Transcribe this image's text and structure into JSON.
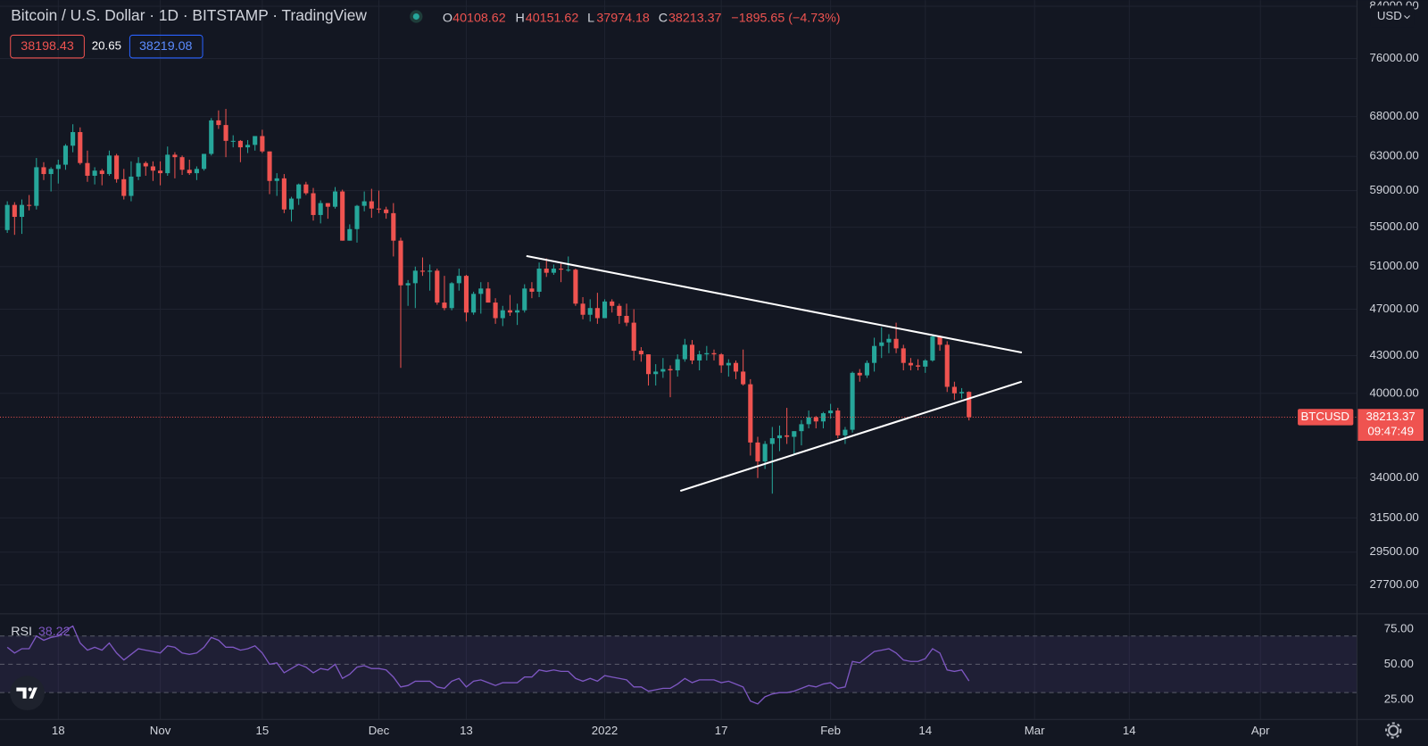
{
  "header": {
    "title": "Bitcoin / U.S. Dollar · 1D · BITSTAMP · TradingView",
    "ohlc_letters": [
      "O",
      "H",
      "L",
      "C"
    ],
    "change": "−1895.65 (−4.73%)",
    "bid": 38198.43,
    "spread": 20.65,
    "ask": 38219.08,
    "currency": "USD",
    "symbol": "BTCUSD",
    "countdown": "09:47:49"
  },
  "chart_data": {
    "type": "candlestick",
    "log_scale": true,
    "grid": true,
    "up_color": "#26a69a",
    "down_color": "#ef5350",
    "xlim": [
      "2021-10-10",
      "2022-04-14"
    ],
    "xticks": [
      {
        "value": "2021-10-18",
        "label": "18"
      },
      {
        "value": "2021-11-01",
        "label": "Nov"
      },
      {
        "value": "2021-11-15",
        "label": "15"
      },
      {
        "value": "2021-12-01",
        "label": "Dec"
      },
      {
        "value": "2021-12-13",
        "label": "13"
      },
      {
        "value": "2022-01-01",
        "label": "2022"
      },
      {
        "value": "2022-01-17",
        "label": "17"
      },
      {
        "value": "2022-02-01",
        "label": "Feb"
      },
      {
        "value": "2022-02-14",
        "label": "14"
      },
      {
        "value": "2022-03-01",
        "label": "Mar"
      },
      {
        "value": "2022-03-14",
        "label": "14"
      },
      {
        "value": "2022-04-01",
        "label": "Apr"
      }
    ],
    "ylim": [
      26300,
      85000
    ],
    "yticks": [
      {
        "value": 84000,
        "label": "84000.00"
      },
      {
        "value": 76000,
        "label": "76000.00"
      },
      {
        "value": 68000,
        "label": "68000.00"
      },
      {
        "value": 63000,
        "label": "63000.00"
      },
      {
        "value": 59000,
        "label": "59000.00"
      },
      {
        "value": 55000,
        "label": "55000.00"
      },
      {
        "value": 51000,
        "label": "51000.00"
      },
      {
        "value": 47000,
        "label": "47000.00"
      },
      {
        "value": 43000,
        "label": "43000.00"
      },
      {
        "value": 40000,
        "label": "40000.00"
      },
      {
        "value": 34000,
        "label": "34000.00"
      },
      {
        "value": 31500,
        "label": "31500.00"
      },
      {
        "value": 29500,
        "label": "29500.00"
      },
      {
        "value": 27700,
        "label": "27700.00"
      }
    ],
    "x": [
      "2021-10-11",
      "2021-10-12",
      "2021-10-13",
      "2021-10-14",
      "2021-10-15",
      "2021-10-16",
      "2021-10-17",
      "2021-10-18",
      "2021-10-19",
      "2021-10-20",
      "2021-10-21",
      "2021-10-22",
      "2021-10-23",
      "2021-10-24",
      "2021-10-25",
      "2021-10-26",
      "2021-10-27",
      "2021-10-28",
      "2021-10-29",
      "2021-10-30",
      "2021-10-31",
      "2021-11-01",
      "2021-11-02",
      "2021-11-03",
      "2021-11-04",
      "2021-11-05",
      "2021-11-06",
      "2021-11-07",
      "2021-11-08",
      "2021-11-09",
      "2021-11-10",
      "2021-11-11",
      "2021-11-12",
      "2021-11-13",
      "2021-11-14",
      "2021-11-15",
      "2021-11-16",
      "2021-11-17",
      "2021-11-18",
      "2021-11-19",
      "2021-11-20",
      "2021-11-21",
      "2021-11-22",
      "2021-11-23",
      "2021-11-24",
      "2021-11-25",
      "2021-11-26",
      "2021-11-27",
      "2021-11-28",
      "2021-11-29",
      "2021-11-30",
      "2021-12-01",
      "2021-12-02",
      "2021-12-03",
      "2021-12-04",
      "2021-12-05",
      "2021-12-06",
      "2021-12-07",
      "2021-12-08",
      "2021-12-09",
      "2021-12-10",
      "2021-12-11",
      "2021-12-12",
      "2021-12-13",
      "2021-12-14",
      "2021-12-15",
      "2021-12-16",
      "2021-12-17",
      "2021-12-18",
      "2021-12-19",
      "2021-12-20",
      "2021-12-21",
      "2021-12-22",
      "2021-12-23",
      "2021-12-24",
      "2021-12-25",
      "2021-12-26",
      "2021-12-27",
      "2021-12-28",
      "2021-12-29",
      "2021-12-30",
      "2021-12-31",
      "2022-01-01",
      "2022-01-02",
      "2022-01-03",
      "2022-01-04",
      "2022-01-05",
      "2022-01-06",
      "2022-01-07",
      "2022-01-08",
      "2022-01-09",
      "2022-01-10",
      "2022-01-11",
      "2022-01-12",
      "2022-01-13",
      "2022-01-14",
      "2022-01-15",
      "2022-01-16",
      "2022-01-17",
      "2022-01-18",
      "2022-01-19",
      "2022-01-20",
      "2022-01-21",
      "2022-01-22",
      "2022-01-23",
      "2022-01-24",
      "2022-01-25",
      "2022-01-26",
      "2022-01-27",
      "2022-01-28",
      "2022-01-29",
      "2022-01-30",
      "2022-01-31",
      "2022-02-01",
      "2022-02-02",
      "2022-02-03",
      "2022-02-04",
      "2022-02-05",
      "2022-02-06",
      "2022-02-07",
      "2022-02-08",
      "2022-02-09",
      "2022-02-10",
      "2022-02-11",
      "2022-02-12",
      "2022-02-13",
      "2022-02-14",
      "2022-02-15",
      "2022-02-16",
      "2022-02-17",
      "2022-02-18",
      "2022-02-19",
      "2022-02-20"
    ],
    "open": [
      54700,
      57400,
      56100,
      57400,
      57300,
      61700,
      60900,
      61500,
      62000,
      64300,
      66000,
      62200,
      60700,
      61300,
      60900,
      63100,
      60300,
      58400,
      60600,
      62200,
      61800,
      61300,
      61000,
      63200,
      62900,
      61400,
      61000,
      61500,
      63300,
      67500,
      66900,
      64900,
      64900,
      64100,
      64400,
      65500,
      63600,
      60100,
      60400,
      56900,
      58100,
      59700,
      58700,
      56300,
      57600,
      57200,
      58900,
      53600,
      54800,
      57300,
      57800,
      57000,
      56900,
      56500,
      53600,
      49200,
      49400,
      50600,
      50500,
      50600,
      47600,
      47100,
      49400,
      50100,
      46700,
      48400,
      48900,
      47600,
      46200,
      46900,
      46700,
      46900,
      48900,
      48600,
      50800,
      50400,
      50800,
      50700,
      50700,
      47500,
      46500,
      47100,
      46200,
      47700,
      47300,
      46400,
      45800,
      43400,
      43100,
      41500,
      41700,
      41900,
      41800,
      42700,
      43900,
      42600,
      43100,
      43200,
      43100,
      42200,
      42400,
      41700,
      40700,
      36400,
      35100,
      36300,
      36700,
      36900,
      36800,
      37200,
      37700,
      38200,
      37900,
      38500,
      38700,
      36900,
      37300,
      41600,
      41400,
      42400,
      43800,
      44100,
      44400,
      43600,
      42400,
      42200,
      42100,
      42600,
      44600,
      43900,
      40500,
      40000,
      40108.62
    ],
    "high": [
      57800,
      57700,
      58000,
      58500,
      62800,
      62300,
      61700,
      62600,
      64500,
      67000,
      66600,
      63700,
      61700,
      61500,
      63700,
      63300,
      61500,
      62400,
      62900,
      62400,
      62400,
      62400,
      64200,
      63500,
      63100,
      62600,
      61800,
      63300,
      67800,
      68800,
      69000,
      65600,
      65000,
      65000,
      65500,
      66300,
      63600,
      61000,
      60900,
      58300,
      59800,
      60000,
      59300,
      57900,
      57600,
      59400,
      59100,
      55300,
      57400,
      58900,
      59200,
      59000,
      57200,
      57600,
      53900,
      49700,
      51000,
      51900,
      51200,
      50800,
      50100,
      49500,
      50800,
      50200,
      48600,
      49500,
      49500,
      48000,
      47300,
      48300,
      47500,
      49300,
      49500,
      51400,
      51800,
      51200,
      51300,
      52000,
      50800,
      48100,
      47900,
      48500,
      47900,
      47900,
      47500,
      47500,
      47000,
      43700,
      43100,
      42300,
      42800,
      42200,
      43100,
      44400,
      44300,
      43400,
      43800,
      43500,
      43200,
      42700,
      42600,
      43500,
      41100,
      36800,
      36500,
      37500,
      37600,
      38900,
      37200,
      38000,
      38700,
      38300,
      38600,
      39200,
      38900,
      37500,
      41700,
      41900,
      42600,
      44500,
      45400,
      44800,
      45800,
      43900,
      42800,
      42700,
      42700,
      44700,
      44700,
      44200,
      40900,
      40400,
      40151.62
    ],
    "low": [
      54400,
      54200,
      54300,
      56800,
      56900,
      60200,
      58900,
      59800,
      61400,
      63500,
      62000,
      60000,
      59700,
      59600,
      60700,
      59900,
      58000,
      57800,
      60200,
      60700,
      60100,
      59600,
      60700,
      60400,
      60800,
      60800,
      60200,
      61300,
      63100,
      66400,
      62900,
      64100,
      62300,
      63400,
      63700,
      63400,
      58600,
      58400,
      56500,
      55600,
      57400,
      58500,
      55700,
      55400,
      55900,
      57000,
      53600,
      53600,
      53400,
      56700,
      56000,
      56500,
      55900,
      52000,
      42000,
      47300,
      47100,
      50100,
      48700,
      47400,
      46900,
      46900,
      48700,
      45900,
      46500,
      46600,
      47600,
      45700,
      45500,
      46400,
      45600,
      46700,
      48000,
      48100,
      50000,
      50200,
      49500,
      50500,
      47300,
      46100,
      45900,
      45700,
      46200,
      46700,
      45700,
      45500,
      42600,
      42500,
      40600,
      40600,
      41200,
      39700,
      41300,
      42500,
      42300,
      41800,
      42600,
      42600,
      41600,
      41300,
      41100,
      40600,
      35500,
      34000,
      34600,
      33000,
      35800,
      36300,
      35600,
      36200,
      37400,
      37400,
      37400,
      38100,
      36700,
      36300,
      37100,
      40900,
      41200,
      41700,
      42800,
      43200,
      43200,
      41800,
      41800,
      41800,
      41600,
      42500,
      43400,
      40100,
      39500,
      39600,
      37974.18
    ],
    "close": [
      57400,
      56100,
      57400,
      57300,
      61700,
      60900,
      61500,
      62000,
      64300,
      66000,
      62200,
      60700,
      61300,
      60900,
      63100,
      60300,
      58400,
      60600,
      62200,
      61800,
      61300,
      61000,
      63200,
      62900,
      61400,
      61000,
      61500,
      63300,
      67500,
      66900,
      64900,
      64900,
      64100,
      64400,
      65500,
      63600,
      60100,
      60400,
      56900,
      58100,
      59700,
      58700,
      56300,
      57600,
      57200,
      58900,
      53600,
      54800,
      57300,
      57800,
      57000,
      56900,
      56500,
      53600,
      49200,
      49400,
      50600,
      50500,
      50600,
      47600,
      47100,
      49400,
      50100,
      46700,
      48400,
      48900,
      47600,
      46200,
      46900,
      46700,
      46900,
      48900,
      48600,
      50800,
      50400,
      50800,
      50700,
      50700,
      47500,
      46500,
      47100,
      46200,
      47700,
      47300,
      46400,
      45800,
      43400,
      43100,
      41500,
      41700,
      41900,
      41800,
      42700,
      43900,
      42600,
      43100,
      43200,
      43100,
      42200,
      42400,
      41700,
      40700,
      36400,
      35100,
      36300,
      36700,
      36900,
      36800,
      37200,
      37700,
      38200,
      37900,
      38500,
      38700,
      36900,
      37300,
      41600,
      41400,
      42400,
      43800,
      44100,
      44400,
      43600,
      42400,
      42200,
      42100,
      42600,
      44600,
      43900,
      40500,
      40000,
      40100,
      38213.37
    ],
    "rsi": {
      "label": "RSI",
      "color": "#7e57c2",
      "ylim": [
        11,
        85
      ],
      "yticks": [
        {
          "value": 75,
          "label": "75.00"
        },
        {
          "value": 50,
          "label": "50.00"
        },
        {
          "value": 25,
          "label": "25.00"
        }
      ],
      "levels": [
        70,
        50,
        30
      ],
      "values": [
        62,
        58,
        61,
        61,
        70,
        67,
        69,
        70,
        74,
        77,
        65,
        60,
        62,
        60,
        65,
        58,
        53,
        57,
        61,
        60,
        59,
        58,
        63,
        62,
        58,
        57,
        58,
        62,
        69,
        67,
        62,
        62,
        60,
        61,
        63,
        58,
        50,
        51,
        44,
        47,
        50,
        48,
        44,
        47,
        46,
        50,
        40,
        43,
        48,
        49,
        47,
        47,
        46,
        41,
        34,
        35,
        38,
        38,
        38,
        34,
        33,
        38,
        40,
        34,
        38,
        39,
        37,
        35,
        37,
        37,
        37,
        41,
        41,
        46,
        45,
        46,
        45,
        45,
        40,
        38,
        40,
        38,
        42,
        41,
        40,
        39,
        34,
        34,
        31,
        32,
        33,
        33,
        36,
        40,
        37,
        39,
        39,
        39,
        37,
        38,
        36,
        34,
        24,
        22,
        27,
        29,
        30,
        30,
        31,
        33,
        35,
        34,
        36,
        37,
        33,
        34,
        52,
        51,
        55,
        59,
        60,
        61,
        58,
        53,
        52,
        52,
        54,
        61,
        58,
        46,
        45,
        46,
        38.22
      ]
    }
  }
}
